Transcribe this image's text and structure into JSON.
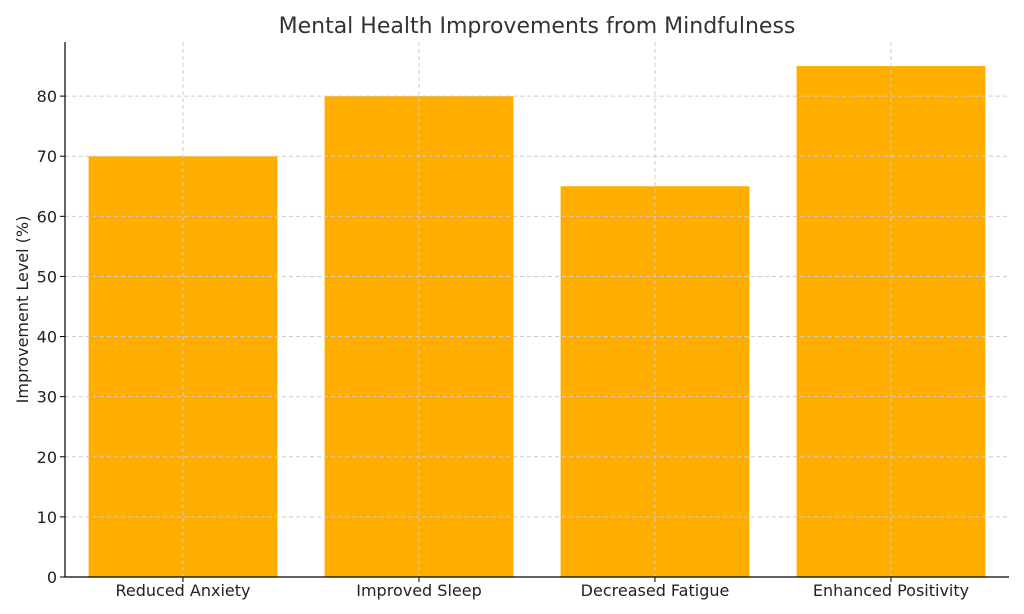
{
  "chart_data": {
    "type": "bar",
    "title": "Mental Health Improvements from Mindfulness",
    "xlabel": "",
    "ylabel": "Improvement Level (%)",
    "categories": [
      "Reduced Anxiety",
      "Improved Sleep",
      "Decreased Fatigue",
      "Enhanced Positivity"
    ],
    "values": [
      70,
      80,
      65,
      85
    ],
    "ylim": [
      0,
      89
    ],
    "yticks": [
      0,
      10,
      20,
      30,
      40,
      50,
      60,
      70,
      80
    ],
    "bar_color": "#FFAE00",
    "grid": true,
    "legend": "none"
  }
}
